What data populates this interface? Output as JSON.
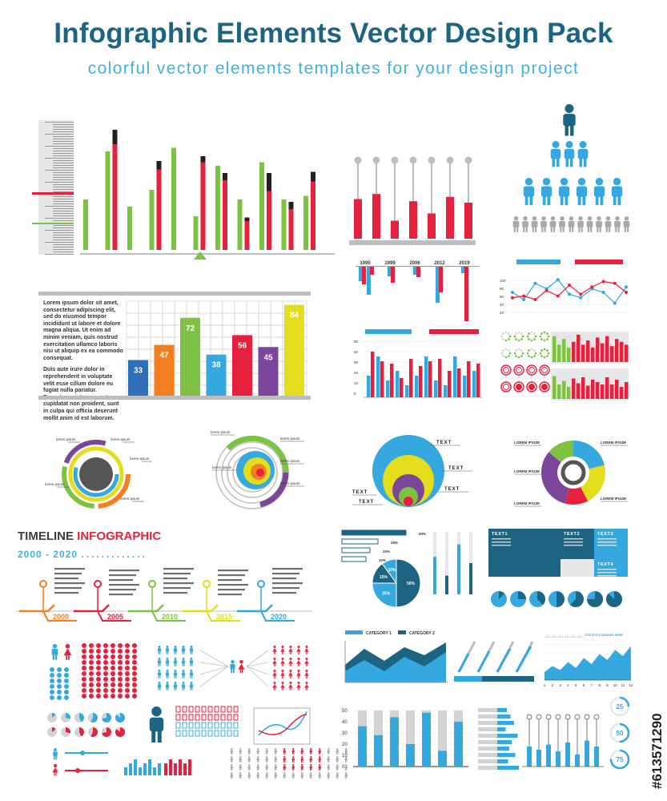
{
  "title": "Infographic Elements Vector Design Pack",
  "subtitle": "colorful vector elements templates for your design project",
  "colors": {
    "blue": "#2f6fb8",
    "orange": "#f47f20",
    "green": "#7dc242",
    "sky": "#35a8e0",
    "red": "#e5213e",
    "purple": "#7b469a",
    "yellow": "#e3dd1c",
    "navy": "#1c6482",
    "dark": "#231f20",
    "gray": "#bcbec0"
  },
  "lorem": {
    "p1": "Lorem ipsum dolor sit amet, consectetur adipiscing elit, sed do eiusmod tempor incididunt ut labore et dolore magna aliqua. Ut enim ad minim veniam, quis nostrud exercitation ullamco laboris nisi ut aliquip ex ea commodo consequat.",
    "p2": "Duis aute irure dolor in reprehenderit in voluptate velit esse cillum dolore eu fugiat nulla pariatur. Excepteur sint occaecat cupidatat non proident, sunt in culpa qui officia deserunt mollit anim id est laborum."
  },
  "chart_data": [
    {
      "type": "bar",
      "values": [
        33,
        47,
        72,
        38,
        56,
        45,
        84
      ],
      "colors": [
        "#2f6fb8",
        "#f47f20",
        "#7dc242",
        "#35a8e0",
        "#e5213e",
        "#7b469a",
        "#e3dd1c"
      ]
    },
    {
      "type": "bar",
      "series": [
        {
          "values": [
            0.45,
            0.85,
            0.35,
            0.55,
            0.25,
            0.45,
            0.85,
            0.35,
            0.25,
            0.85,
            0.45,
            0.55
          ]
        },
        {
          "values": [
            0.95,
            0.75,
            0.7,
            0.4,
            0.8,
            0.65,
            0.75,
            0.8,
            0.55,
            0.6,
            0.75,
            0.7
          ]
        }
      ]
    },
    {
      "type": "bar",
      "categories": [
        "1990",
        "1999",
        "2006",
        "2012",
        "2019"
      ]
    },
    {
      "type": "bar",
      "values": [
        0.55,
        0.62,
        0.25,
        0.52,
        0.35,
        0.58,
        0.5
      ]
    },
    {
      "type": "line",
      "ylabels": [
        "100",
        "80",
        "60",
        "40",
        "20"
      ],
      "series": [
        {
          "values": [
            60,
            40,
            85,
            70,
            95,
            55,
            45,
            70,
            60,
            30,
            75
          ]
        },
        {
          "values": [
            45,
            50,
            40,
            65,
            50,
            80,
            55,
            75,
            90,
            85,
            60
          ]
        }
      ]
    },
    {
      "type": "pie",
      "labels": [
        "50%",
        "25%",
        "15%",
        "10%"
      ],
      "values": [
        50,
        25,
        15,
        10
      ]
    },
    {
      "type": "bar",
      "ylabels": [
        "50",
        "40",
        "30",
        "20",
        "10",
        "0"
      ],
      "values": [
        36,
        28,
        44,
        20,
        48,
        14,
        40
      ]
    },
    {
      "type": "area",
      "categories": [
        "1",
        "2",
        "3",
        "4",
        "5",
        "6",
        "7",
        "8",
        "9",
        "10",
        "11",
        "12"
      ],
      "values": [
        20,
        35,
        25,
        45,
        30,
        55,
        40,
        65,
        50,
        75,
        60,
        85
      ]
    }
  ],
  "circle_labels": {
    "lorem": "lorem ipsum",
    "lorem_upper": "LOREM IPSUM",
    "text": "TEXT"
  },
  "timeline": {
    "title_a": "TIMELINE",
    "title_b": "INFOGRAPHIC",
    "range": "2000 - 2020",
    "years": [
      "2000",
      "2005",
      "2010",
      "2015",
      "2020"
    ]
  },
  "table_panel": {
    "labels": [
      "TEXT1",
      "TEXT2",
      "TEXT3",
      "TEXT4"
    ]
  },
  "pie_bars": {
    "labels": [
      "50%",
      "25%",
      "15%",
      "10%"
    ]
  },
  "area_legend": {
    "a": "CATEGORY 1",
    "b": "CATEGORY 2"
  },
  "stats_title": "STATISTICS BANNER HERE",
  "rings": [
    "25",
    "50",
    "75"
  ],
  "watermark": "#613571290"
}
